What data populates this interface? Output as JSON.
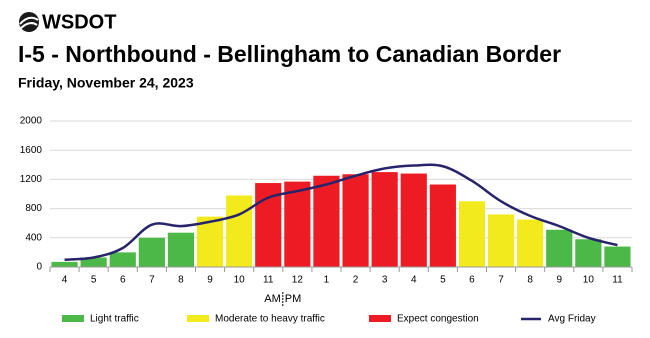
{
  "brand": "WSDOT",
  "chart_data": {
    "type": "bar",
    "title": "I-5 - Northbound - Bellingham to Canadian Border",
    "subtitle": "Friday, November 24, 2023",
    "categories": [
      "4",
      "5",
      "6",
      "7",
      "8",
      "9",
      "10",
      "11",
      "12",
      "1",
      "2",
      "3",
      "4",
      "5",
      "6",
      "7",
      "8",
      "9",
      "10",
      "11"
    ],
    "x_annotations": [
      "AM",
      "PM"
    ],
    "levels": [
      {
        "name": "Light traffic",
        "color": "#4cb848"
      },
      {
        "name": "Moderate to heavy traffic",
        "color": "#f2ea1d"
      },
      {
        "name": "Expect congestion",
        "color": "#ed1c24"
      }
    ],
    "bar_levels": [
      0,
      0,
      0,
      0,
      0,
      1,
      1,
      2,
      2,
      2,
      2,
      2,
      2,
      2,
      1,
      1,
      1,
      0,
      0,
      0
    ],
    "values": [
      70,
      130,
      200,
      400,
      470,
      690,
      980,
      1150,
      1170,
      1250,
      1270,
      1300,
      1280,
      1130,
      900,
      720,
      650,
      510,
      380,
      280
    ],
    "series": [
      {
        "name": "Avg Friday",
        "type": "line",
        "color": "#27246b",
        "values": [
          100,
          130,
          260,
          580,
          560,
          620,
          720,
          950,
          1040,
          1130,
          1250,
          1350,
          1390,
          1380,
          1180,
          900,
          700,
          560,
          400,
          300
        ]
      }
    ],
    "ylim": [
      0,
      2000
    ],
    "yticks": [
      0,
      400,
      800,
      1200,
      1600,
      2000
    ],
    "grid": true
  }
}
